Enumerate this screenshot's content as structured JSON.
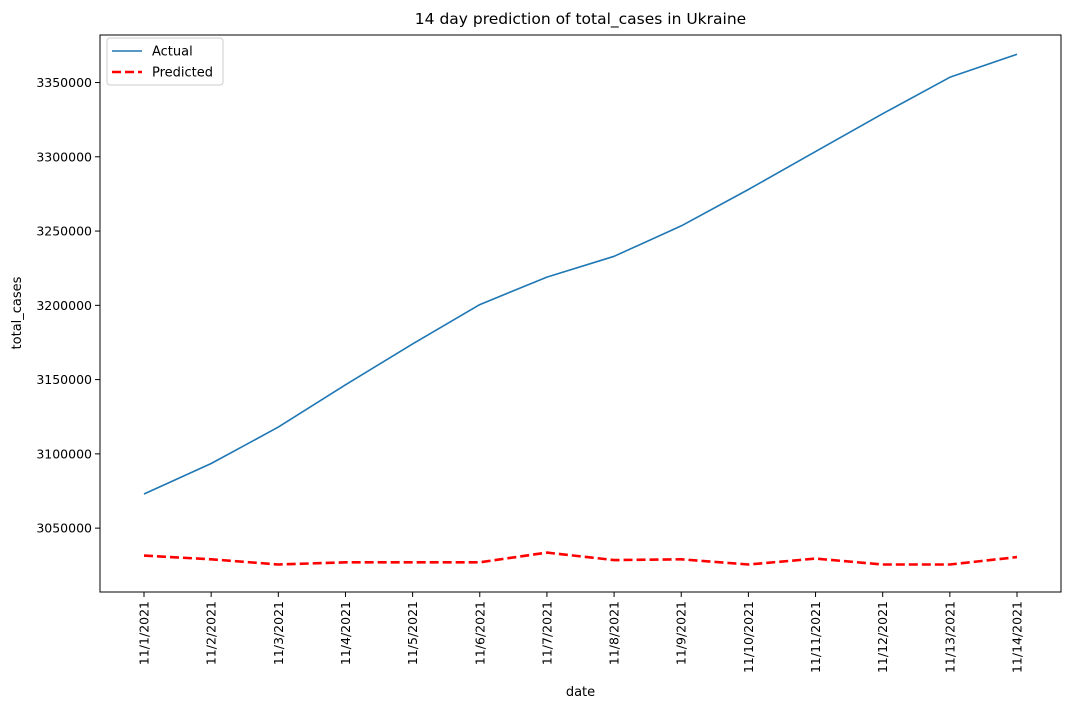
{
  "chart_data": {
    "type": "line",
    "title": "14 day prediction of total_cases in Ukraine",
    "xlabel": "date",
    "ylabel": "total_cases",
    "categories": [
      "11/1/2021",
      "11/2/2021",
      "11/3/2021",
      "11/4/2021",
      "11/5/2021",
      "11/6/2021",
      "11/7/2021",
      "11/8/2021",
      "11/9/2021",
      "11/10/2021",
      "11/11/2021",
      "11/12/2021",
      "11/13/2021",
      "11/14/2021"
    ],
    "yticks": [
      3050000,
      3100000,
      3150000,
      3200000,
      3250000,
      3300000,
      3350000
    ],
    "ylim": [
      3007000,
      3382000
    ],
    "grid": false,
    "legend_position": "top-left",
    "series": [
      {
        "name": "Actual",
        "color": "#1f77b4",
        "style": "solid",
        "values": [
          3073000,
          3093500,
          3118000,
          3146500,
          3174000,
          3200500,
          3219000,
          3233000,
          3253500,
          3278000,
          3303500,
          3329000,
          3353500,
          3369000
        ]
      },
      {
        "name": "Predicted",
        "color": "#ff0000",
        "style": "dashed",
        "values": [
          3031500,
          3029000,
          3025500,
          3027000,
          3027000,
          3027000,
          3033500,
          3028500,
          3029000,
          3025500,
          3029500,
          3025500,
          3025500,
          3030500
        ]
      }
    ]
  }
}
